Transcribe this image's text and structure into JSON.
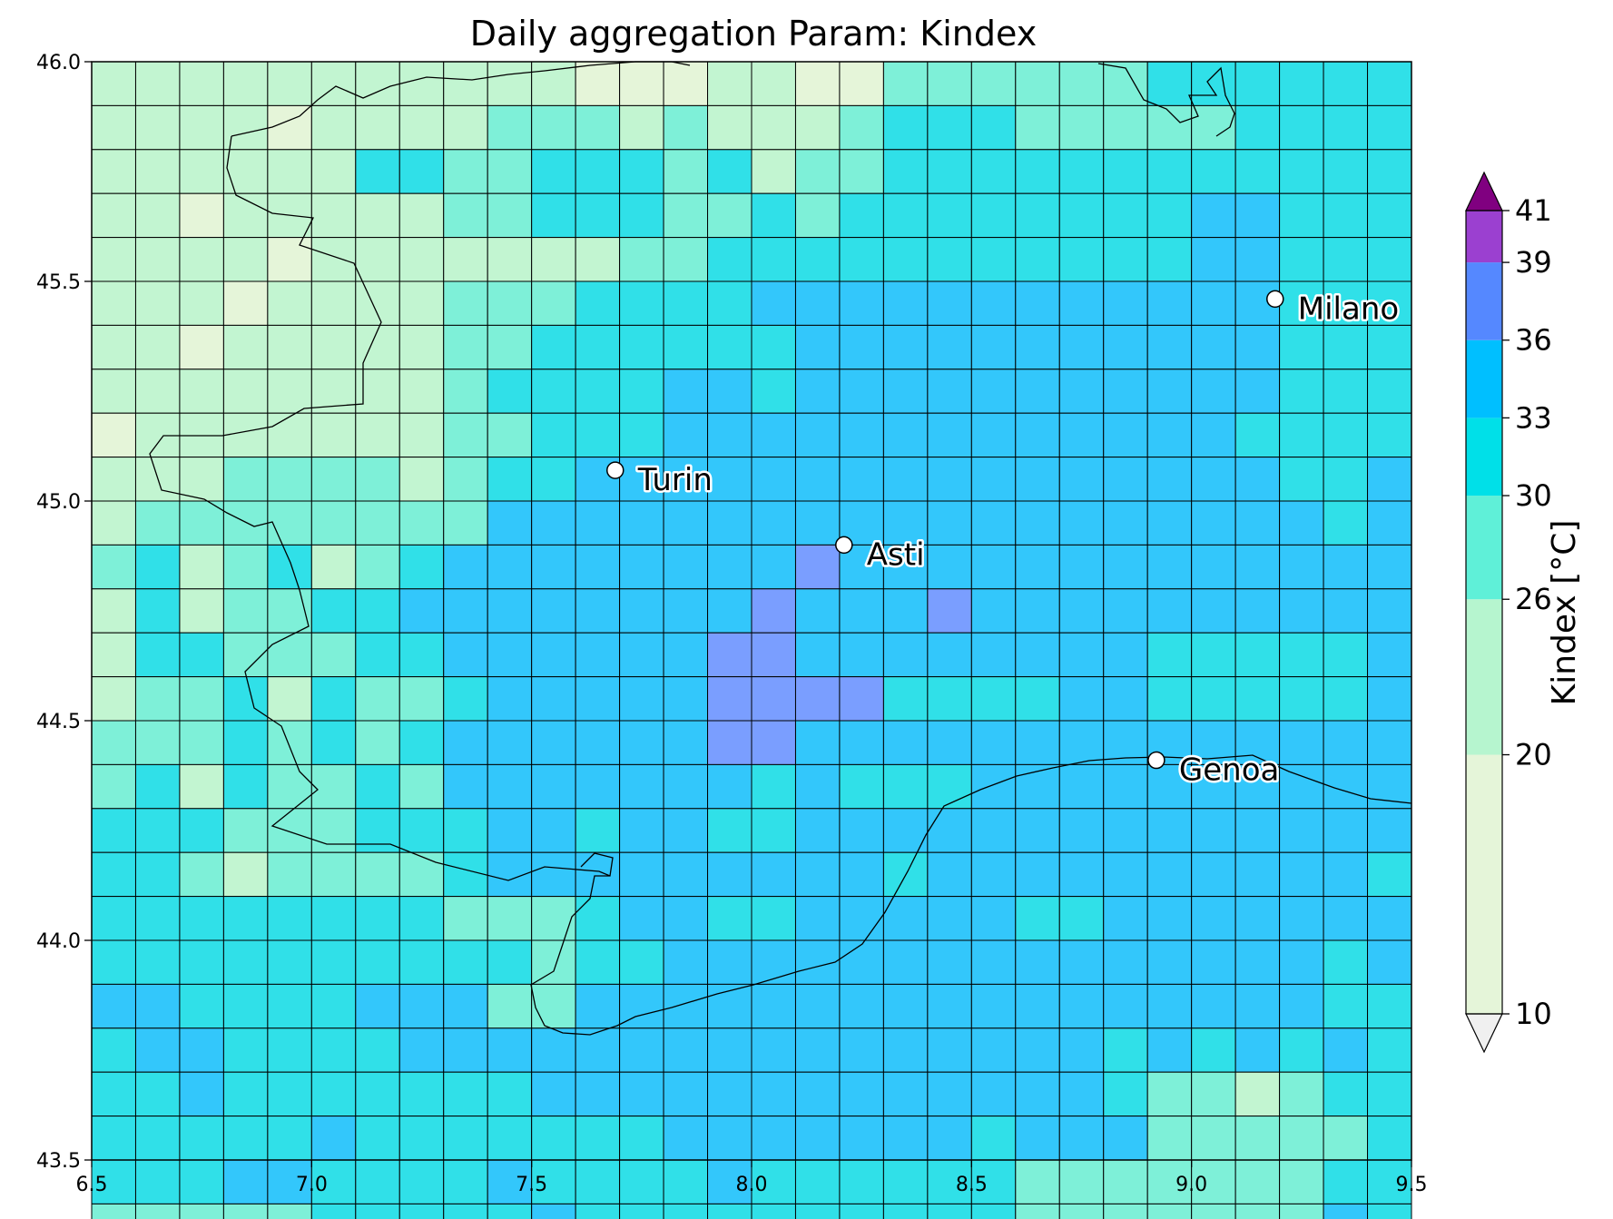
{
  "title": "Daily aggregation Param: Kindex",
  "chart_data": {
    "type": "heatmap",
    "title": "Daily aggregation Param: Kindex",
    "xlabel": "",
    "ylabel": "",
    "xlim": [
      6.5,
      9.5
    ],
    "ylim": [
      43.5,
      46.0
    ],
    "xticks": [
      "6.5",
      "7.0",
      "7.5",
      "8.0",
      "8.5",
      "9.0",
      "9.5"
    ],
    "yticks": [
      "43.5",
      "44.0",
      "44.5",
      "45.0",
      "45.5",
      "46.0"
    ],
    "grid_lon_start": 6.5,
    "grid_lat_top": 46.0,
    "cell_deg": 0.1,
    "level_codes": "0=<20, 1=20-26, 2=26-30, 3=30-33, 4=33-36",
    "level_colors": [
      "#e5f5d9",
      "#c2f5d1",
      "#7ef0d8",
      "#30e0e8",
      "#33c7fb"
    ],
    "cells": [
      "111111111110001100222222333333",
      "111101111222121112333222223333",
      "111111332233323122333333333333",
      "110111112233322323333333344333",
      "111101111111223333333333344333",
      "111011112223333444444444444333",
      "110111112233333344444444444333",
      "111111112333344344444444444333",
      "011111112233344444444444443333",
      "111222212334444444444444444334",
      "122222222444444444444444444434",
      "231231234444444444444444444444",
      "131223344444444444444444444444",
      "133222334444444444444444333334",
      "122313223444444444333344333334",
      "222323234444444444444444444444",
      "231322324444444343334444444444",
      "333222333443443344444444444444",
      "332122223444444444344444444443",
      "333333332223443344444334444444",
      "333333333323344444444444444434",
      "443333444224444444444444444433",
      "344333344444444444444443434343",
      "334333333344444444444443221233",
      "333334333333344444443444222223",
      "333443333433334333333222222233",
      "222223333343333333333222222243"
    ],
    "highlight_cells": [
      {
        "row": 11,
        "col": 16,
        "value_range": "36-39"
      },
      {
        "row": 12,
        "col": 15,
        "value_range": "36-39"
      },
      {
        "row": 12,
        "col": 19,
        "value_range": "36-39"
      },
      {
        "row": 13,
        "col": 14,
        "value_range": "36-39"
      },
      {
        "row": 13,
        "col": 15,
        "value_range": "36-39"
      },
      {
        "row": 14,
        "col": 14,
        "value_range": "36-39"
      },
      {
        "row": 14,
        "col": 15,
        "value_range": "36-39"
      },
      {
        "row": 14,
        "col": 16,
        "value_range": "36-39"
      },
      {
        "row": 14,
        "col": 17,
        "value_range": "36-39"
      },
      {
        "row": 15,
        "col": 14,
        "value_range": "36-39"
      },
      {
        "row": 15,
        "col": 15,
        "value_range": "36-39"
      }
    ],
    "highlight_color": "#7a9eff",
    "cities": [
      {
        "name": "Milano",
        "lon": 9.19,
        "lat": 45.46
      },
      {
        "name": "Turin",
        "lon": 7.69,
        "lat": 45.07
      },
      {
        "name": "Asti",
        "lon": 8.21,
        "lat": 44.9
      },
      {
        "name": "Genoa",
        "lon": 8.92,
        "lat": 44.41
      }
    ],
    "colorbar": {
      "label": "Kindex [°C]",
      "ticks": [
        "10",
        "20",
        "26",
        "30",
        "33",
        "36",
        "39",
        "41"
      ],
      "bins": [
        {
          "from": 10,
          "to": 20,
          "color": "#e5f5d9"
        },
        {
          "from": 20,
          "to": 26,
          "color": "#b6f5cf"
        },
        {
          "from": 26,
          "to": 30,
          "color": "#5ff0d8"
        },
        {
          "from": 30,
          "to": 33,
          "color": "#00e0e8"
        },
        {
          "from": 33,
          "to": 36,
          "color": "#00bfff"
        },
        {
          "from": 36,
          "to": 39,
          "color": "#5588ff"
        },
        {
          "from": 39,
          "to": 41,
          "color": "#9b40d0"
        }
      ],
      "under_color": "#f0f0f0",
      "over_color": "#800080"
    }
  }
}
